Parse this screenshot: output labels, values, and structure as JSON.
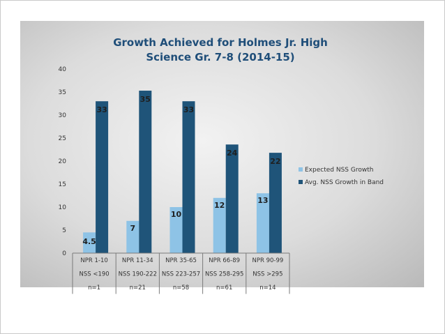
{
  "chart_data": {
    "type": "bar",
    "title_lines": [
      "Growth Achieved for Holmes Jr. High",
      "Science Gr. 7-8 (2014-15)"
    ],
    "categories": [
      [
        "NPR 1-10",
        "NSS <190",
        "n=1"
      ],
      [
        "NPR 11-34",
        "NSS 190-222",
        "n=21"
      ],
      [
        "NPR 35-65",
        "NSS 223-257",
        "n=58"
      ],
      [
        "NPR 66-89",
        "NSS 258-295",
        "n=61"
      ],
      [
        "NPR 90-99",
        "NSS >295",
        "n=14"
      ]
    ],
    "series": [
      {
        "name": "Expected NSS Growth",
        "values": [
          4.5,
          7,
          10,
          12,
          13
        ],
        "labels": [
          "4.5",
          "7",
          "10",
          "12",
          "13"
        ],
        "color": "#8ec3e6"
      },
      {
        "name": "Avg. NSS Growth in Band",
        "values": [
          33,
          35.3,
          33,
          23.6,
          21.8
        ],
        "labels": [
          "33",
          "35",
          "33",
          "24",
          "22"
        ],
        "color": "#1f5479"
      }
    ],
    "ylim": [
      0,
      40
    ],
    "yticks": [
      0,
      5,
      10,
      15,
      20,
      25,
      30,
      35,
      40
    ],
    "legend_position": "right",
    "grid": false
  }
}
